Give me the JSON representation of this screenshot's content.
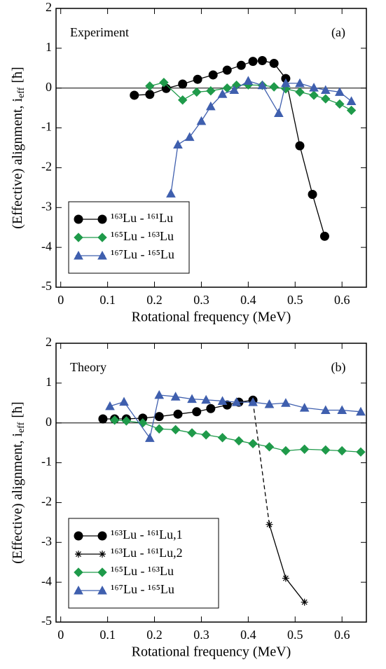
{
  "chart_data": [
    {
      "type": "line",
      "annotations": [
        "Experiment",
        "(a)"
      ],
      "xlabel": "Rotational frequency (MeV)",
      "ylabel": "(Effective) alignment, i",
      "ylabel_sub": "eff",
      "ylabel_unit": "[ħ]",
      "xlim": [
        -0.01,
        0.652
      ],
      "ylim": [
        -5,
        2
      ],
      "xticks": [
        0,
        0.1,
        0.2,
        0.3,
        0.4,
        0.5,
        0.6
      ],
      "yticks": [
        -5,
        -4,
        -3,
        -2,
        -1,
        0,
        1,
        2
      ],
      "legend": "lower left",
      "series": [
        {
          "name": "¹⁶³Lu - ¹⁶¹Lu",
          "color": "#000000",
          "marker": "circle",
          "x": [
            0.157,
            0.19,
            0.225,
            0.26,
            0.292,
            0.325,
            0.355,
            0.385,
            0.41,
            0.43,
            0.455,
            0.48,
            0.51,
            0.537,
            0.563
          ],
          "values": [
            -0.18,
            -0.16,
            -0.01,
            0.1,
            0.22,
            0.33,
            0.45,
            0.57,
            0.67,
            0.69,
            0.62,
            0.24,
            -1.45,
            -2.67,
            -3.72
          ]
        },
        {
          "name": "¹⁶⁵Lu - ¹⁶³Lu",
          "color": "#1f9a4a",
          "marker": "diamond",
          "x": [
            0.19,
            0.22,
            0.26,
            0.29,
            0.32,
            0.355,
            0.375,
            0.4,
            0.43,
            0.455,
            0.48,
            0.51,
            0.54,
            0.565,
            0.595,
            0.62
          ],
          "values": [
            0.05,
            0.14,
            -0.3,
            -0.1,
            -0.07,
            0.0,
            0.07,
            0.08,
            0.07,
            0.03,
            -0.02,
            -0.1,
            -0.18,
            -0.27,
            -0.4,
            -0.56
          ]
        },
        {
          "name": "¹⁶⁷Lu - ¹⁶⁵Lu",
          "color": "#3f5fae",
          "marker": "triangle",
          "x": [
            0.235,
            0.25,
            0.275,
            0.3,
            0.32,
            0.345,
            0.37,
            0.4,
            0.43,
            0.465,
            0.48,
            0.51,
            0.54,
            0.565,
            0.595,
            0.62
          ],
          "values": [
            -2.65,
            -1.42,
            -1.23,
            -0.83,
            -0.46,
            -0.15,
            -0.05,
            0.18,
            0.07,
            -0.63,
            0.12,
            0.12,
            0.01,
            -0.05,
            -0.1,
            -0.33
          ]
        }
      ]
    },
    {
      "type": "line",
      "annotations": [
        "Theory",
        "(b)"
      ],
      "xlabel": "Rotational frequency (MeV)",
      "ylabel": "(Effective) alignment, i",
      "ylabel_sub": "eff",
      "ylabel_unit": "[ħ]",
      "xlim": [
        -0.01,
        0.652
      ],
      "ylim": [
        -5,
        2
      ],
      "xticks": [
        0,
        0.1,
        0.2,
        0.3,
        0.4,
        0.5,
        0.6
      ],
      "yticks": [
        -5,
        -4,
        -3,
        -2,
        -1,
        0,
        1,
        2
      ],
      "legend": "lower left",
      "series": [
        {
          "name": "¹⁶³Lu - ¹⁶¹Lu,1",
          "color": "#000000",
          "marker": "circle",
          "x": [
            0.09,
            0.115,
            0.14,
            0.175,
            0.21,
            0.25,
            0.29,
            0.32,
            0.355,
            0.38,
            0.41
          ],
          "values": [
            0.1,
            0.1,
            0.1,
            0.12,
            0.16,
            0.22,
            0.28,
            0.36,
            0.45,
            0.52,
            0.57
          ]
        },
        {
          "name": "¹⁶³Lu - ¹⁶¹Lu,2",
          "color": "#000000",
          "marker": "star",
          "dash_first_segment": true,
          "x": [
            0.41,
            0.445,
            0.48,
            0.52
          ],
          "values": [
            0.53,
            -2.55,
            -3.9,
            -4.5
          ]
        },
        {
          "name": "¹⁶⁵Lu - ¹⁶³Lu",
          "color": "#1f9a4a",
          "marker": "diamond",
          "x": [
            0.115,
            0.14,
            0.175,
            0.21,
            0.245,
            0.28,
            0.31,
            0.345,
            0.38,
            0.41,
            0.445,
            0.48,
            0.52,
            0.565,
            0.6,
            0.64
          ],
          "values": [
            0.07,
            0.05,
            0.0,
            -0.15,
            -0.17,
            -0.25,
            -0.3,
            -0.37,
            -0.45,
            -0.52,
            -0.6,
            -0.7,
            -0.66,
            -0.68,
            -0.7,
            -0.73
          ]
        },
        {
          "name": "¹⁶⁷Lu - ¹⁶⁵Lu",
          "color": "#3f5fae",
          "marker": "triangle",
          "x": [
            0.105,
            0.135,
            0.19,
            0.21,
            0.245,
            0.28,
            0.31,
            0.345,
            0.375,
            0.41,
            0.445,
            0.48,
            0.52,
            0.565,
            0.6,
            0.64
          ],
          "values": [
            0.42,
            0.53,
            -0.38,
            0.7,
            0.66,
            0.6,
            0.58,
            0.55,
            0.52,
            0.52,
            0.47,
            0.5,
            0.38,
            0.32,
            0.32,
            0.28
          ]
        }
      ]
    }
  ]
}
